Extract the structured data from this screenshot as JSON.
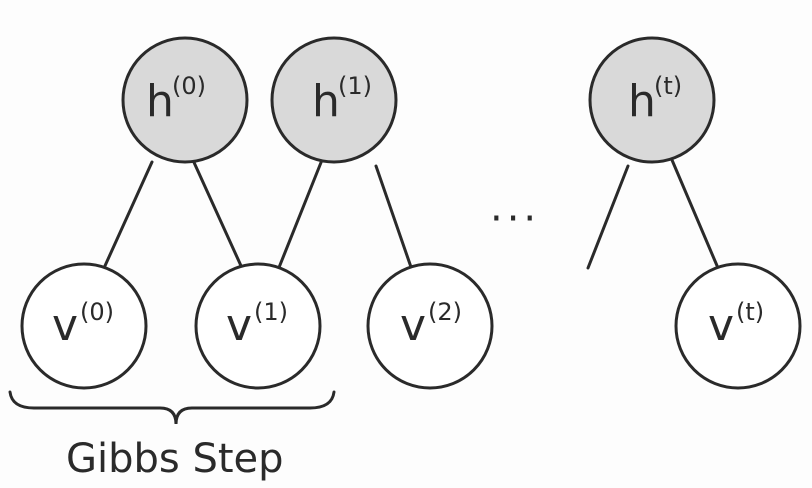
{
  "nodes": {
    "h0": {
      "base": "h",
      "sup": "(0)"
    },
    "h1": {
      "base": "h",
      "sup": "(1)"
    },
    "ht": {
      "base": "h",
      "sup": "(t)"
    },
    "v0": {
      "base": "v",
      "sup": "(0)"
    },
    "v1": {
      "base": "v",
      "sup": "(1)"
    },
    "v2": {
      "base": "v",
      "sup": "(2)"
    },
    "vt": {
      "base": "v",
      "sup": "(t)"
    }
  },
  "ellipsis": "···",
  "caption": "Gibbs Step",
  "colors": {
    "hidden_fill": "#d9d9d9",
    "visible_fill": "#ffffff",
    "stroke": "#2a2a2a"
  }
}
